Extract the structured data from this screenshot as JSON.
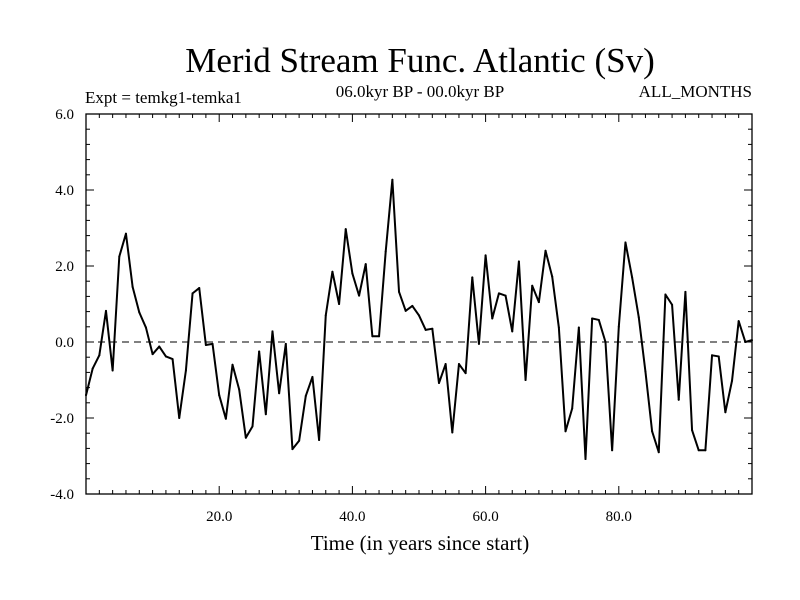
{
  "chart_data": {
    "type": "line",
    "title": "Merid Stream Func. Atlantic (Sv)",
    "experiment_label": "Expt = temkg1-temka1",
    "period_label": "06.0kyr BP - 00.0kyr BP",
    "months_label": "ALL_MONTHS",
    "xlabel": "Time (in years since start)",
    "ylabel": "",
    "xlim": [
      0,
      100
    ],
    "ylim": [
      -4.0,
      6.0
    ],
    "xticks": [
      20,
      40,
      60,
      80
    ],
    "xtick_labels": [
      "20.0",
      "40.0",
      "60.0",
      "80.0"
    ],
    "yticks": [
      -4,
      -2,
      0,
      2,
      4,
      6
    ],
    "ytick_labels": [
      "-4.0",
      "-2.0",
      "0.0",
      "2.0",
      "4.0",
      "6.0"
    ],
    "reference_line": {
      "y": 0.0,
      "style": "dashed"
    },
    "grid": false,
    "series": [
      {
        "name": "temkg1-temka1",
        "x": [
          0,
          1,
          2,
          3,
          4,
          5,
          6,
          7,
          8,
          9,
          10,
          11,
          12,
          13,
          14,
          15,
          16,
          17,
          18,
          19,
          20,
          21,
          22,
          23,
          24,
          25,
          26,
          27,
          28,
          29,
          30,
          31,
          32,
          33,
          34,
          35,
          36,
          37,
          38,
          39,
          40,
          41,
          42,
          43,
          44,
          45,
          46,
          47,
          48,
          49,
          50,
          51,
          52,
          53,
          54,
          55,
          56,
          57,
          58,
          59,
          60,
          61,
          62,
          63,
          64,
          65,
          66,
          67,
          68,
          69,
          70,
          71,
          72,
          73,
          74,
          75,
          76,
          77,
          78,
          79,
          80,
          81,
          82,
          83,
          84,
          85,
          86,
          87,
          88,
          89,
          90,
          91,
          92,
          93,
          94,
          95,
          96,
          97,
          98,
          99,
          100
        ],
        "y": [
          -1.4,
          -0.7,
          -0.35,
          0.82,
          -0.75,
          2.25,
          2.85,
          1.45,
          0.78,
          0.38,
          -0.32,
          -0.12,
          -0.38,
          -0.45,
          -2.0,
          -0.75,
          1.28,
          1.42,
          -0.08,
          -0.05,
          -1.4,
          -2.02,
          -0.6,
          -1.25,
          -2.52,
          -2.22,
          -0.25,
          -1.9,
          0.28,
          -1.35,
          -0.05,
          -2.82,
          -2.6,
          -1.42,
          -0.92,
          -2.58,
          0.7,
          1.85,
          1.0,
          2.97,
          1.8,
          1.22,
          2.05,
          0.15,
          0.15,
          2.38,
          4.27,
          1.32,
          0.82,
          0.95,
          0.7,
          0.32,
          0.35,
          -1.08,
          -0.58,
          -2.38,
          -0.58,
          -0.82,
          1.7,
          -0.05,
          2.28,
          0.62,
          1.28,
          1.22,
          0.28,
          2.12,
          -1.0,
          1.48,
          1.05,
          2.4,
          1.72,
          0.38,
          -2.35,
          -1.75,
          0.38,
          -3.08,
          0.62,
          0.58,
          0.0,
          -2.85,
          0.4,
          2.62,
          1.7,
          0.65,
          -0.78,
          -2.35,
          -2.9,
          1.25,
          0.98,
          -1.52,
          1.32,
          -2.32,
          -2.85,
          -2.85,
          -0.35,
          -0.38,
          -1.85,
          -1.02,
          0.55,
          0.0,
          0.05
        ]
      }
    ]
  }
}
